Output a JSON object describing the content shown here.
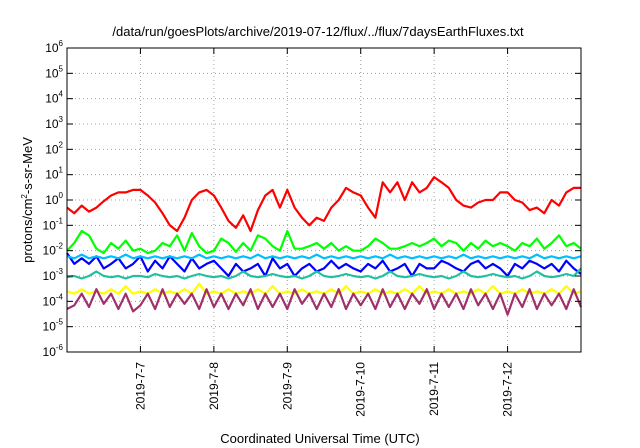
{
  "chart_data": {
    "type": "line",
    "title": "/data/run/goesPlots/archive/2019-07-12/flux/../flux/7daysEarthFluxes.txt",
    "xlabel": "Coordinated Universal Time (UTC)",
    "ylabel_parts": {
      "base": "protons/cm",
      "sup": "2",
      "rest": "-s-sr-MeV"
    },
    "yscale": "log",
    "ylim": [
      1e-06,
      1000000.0
    ],
    "xlim": [
      0,
      7
    ],
    "grid": true,
    "y_ticks": [
      {
        "exp": -6,
        "base": "10",
        "sup": "-6"
      },
      {
        "exp": -5,
        "base": "10",
        "sup": "-5"
      },
      {
        "exp": -4,
        "base": "10",
        "sup": "-4"
      },
      {
        "exp": -3,
        "base": "10",
        "sup": "-3"
      },
      {
        "exp": -2,
        "base": "10",
        "sup": "-2"
      },
      {
        "exp": -1,
        "base": "10",
        "sup": "-1"
      },
      {
        "exp": 0,
        "base": "10",
        "sup": "0"
      },
      {
        "exp": 1,
        "base": "10",
        "sup": "1"
      },
      {
        "exp": 2,
        "base": "10",
        "sup": "2"
      },
      {
        "exp": 3,
        "base": "10",
        "sup": "3"
      },
      {
        "exp": 4,
        "base": "10",
        "sup": "4"
      },
      {
        "exp": 5,
        "base": "10",
        "sup": "5"
      },
      {
        "exp": 6,
        "base": "10",
        "sup": "6"
      }
    ],
    "x_ticks": [
      {
        "x": 1,
        "label": "2019-7-7"
      },
      {
        "x": 2,
        "label": "2019-7-8"
      },
      {
        "x": 3,
        "label": "2019-7-9"
      },
      {
        "x": 4,
        "label": "2019-7-10"
      },
      {
        "x": 5,
        "label": "2019-7-11"
      },
      {
        "x": 6,
        "label": "2019-7-12"
      }
    ],
    "x_days": [
      0,
      0.1,
      0.2,
      0.3,
      0.4,
      0.5,
      0.6,
      0.7,
      0.8,
      0.9,
      1,
      1.1,
      1.2,
      1.3,
      1.4,
      1.5,
      1.6,
      1.7,
      1.8,
      1.9,
      2,
      2.1,
      2.2,
      2.3,
      2.4,
      2.5,
      2.6,
      2.7,
      2.8,
      2.9,
      3,
      3.1,
      3.2,
      3.3,
      3.4,
      3.5,
      3.6,
      3.7,
      3.8,
      3.9,
      4,
      4.1,
      4.2,
      4.3,
      4.4,
      4.5,
      4.6,
      4.7,
      4.8,
      4.9,
      5,
      5.1,
      5.2,
      5.3,
      5.4,
      5.5,
      5.6,
      5.7,
      5.8,
      5.9,
      6,
      6.1,
      6.2,
      6.3,
      6.4,
      6.5,
      6.6,
      6.7,
      6.8,
      6.9,
      7
    ],
    "series": [
      {
        "color": "#ff0000",
        "width": 2.2,
        "values": [
          0.5,
          0.3,
          0.6,
          0.35,
          0.5,
          0.9,
          1.5,
          2,
          2,
          2.5,
          2.5,
          1.5,
          0.8,
          0.3,
          0.1,
          0.06,
          0.2,
          1,
          2,
          2.5,
          1.5,
          0.5,
          0.15,
          0.08,
          0.25,
          0.06,
          0.4,
          1.5,
          2.5,
          0.5,
          2.5,
          0.5,
          0.2,
          0.1,
          0.2,
          0.15,
          0.5,
          1,
          3,
          2,
          1.5,
          0.5,
          0.2,
          5,
          2,
          5,
          1,
          5,
          2,
          3,
          8,
          5,
          3,
          1,
          0.6,
          0.5,
          0.8,
          1,
          1,
          2,
          2,
          1,
          0.8,
          0.4,
          0.5,
          0.3,
          1,
          0.6,
          2,
          3,
          3
        ]
      },
      {
        "color": "#00ff00",
        "width": 2.2,
        "values": [
          0.01,
          0.02,
          0.06,
          0.04,
          0.012,
          0.008,
          0.02,
          0.012,
          0.025,
          0.01,
          0.012,
          0.008,
          0.01,
          0.02,
          0.015,
          0.04,
          0.01,
          0.05,
          0.015,
          0.008,
          0.01,
          0.03,
          0.02,
          0.009,
          0.02,
          0.01,
          0.04,
          0.03,
          0.015,
          0.01,
          0.06,
          0.012,
          0.012,
          0.015,
          0.02,
          0.012,
          0.02,
          0.01,
          0.015,
          0.01,
          0.01,
          0.015,
          0.03,
          0.02,
          0.012,
          0.012,
          0.015,
          0.02,
          0.015,
          0.02,
          0.03,
          0.015,
          0.025,
          0.02,
          0.01,
          0.02,
          0.012,
          0.025,
          0.015,
          0.02,
          0.015,
          0.01,
          0.02,
          0.015,
          0.03,
          0.012,
          0.02,
          0.04,
          0.015,
          0.02,
          0.012
        ]
      },
      {
        "color": "#0000ff",
        "width": 2.2,
        "values": [
          0.008,
          0.003,
          0.005,
          0.003,
          0.006,
          0.002,
          0.003,
          0.005,
          0.002,
          0.003,
          0.006,
          0.0015,
          0.004,
          0.002,
          0.006,
          0.003,
          0.0015,
          0.005,
          0.002,
          0.003,
          0.004,
          0.002,
          0.001,
          0.003,
          0.0015,
          0.002,
          0.003,
          0.001,
          0.005,
          0.002,
          0.003,
          0.001,
          0.002,
          0.003,
          0.0015,
          0.002,
          0.004,
          0.002,
          0.003,
          0.002,
          0.0015,
          0.003,
          0.002,
          0.004,
          0.0015,
          0.002,
          0.003,
          0.001,
          0.003,
          0.002,
          0.002,
          0.004,
          0.003,
          0.002,
          0.0015,
          0.003,
          0.004,
          0.002,
          0.003,
          0.002,
          0.001,
          0.003,
          0.002,
          0.004,
          0.003,
          0.002,
          0.003,
          0.0015,
          0.004,
          0.002,
          0.0012
        ]
      },
      {
        "color": "#00bfff",
        "width": 2.2,
        "values": [
          0.006,
          0.005,
          0.007,
          0.005,
          0.006,
          0.005,
          0.006,
          0.005,
          0.007,
          0.005,
          0.006,
          0.005,
          0.006,
          0.005,
          0.006,
          0.005,
          0.006,
          0.005,
          0.007,
          0.005,
          0.006,
          0.005,
          0.006,
          0.005,
          0.006,
          0.005,
          0.007,
          0.005,
          0.006,
          0.005,
          0.006,
          0.005,
          0.006,
          0.005,
          0.007,
          0.005,
          0.006,
          0.005,
          0.006,
          0.005,
          0.006,
          0.005,
          0.006,
          0.005,
          0.007,
          0.005,
          0.006,
          0.005,
          0.006,
          0.005,
          0.006,
          0.005,
          0.006,
          0.005,
          0.007,
          0.005,
          0.006,
          0.005,
          0.006,
          0.005,
          0.006,
          0.005,
          0.006,
          0.005,
          0.007,
          0.005,
          0.006,
          0.005,
          0.006,
          0.005,
          0.006
        ]
      },
      {
        "color": "#20c0a0",
        "width": 2.2,
        "values": [
          0.0009,
          0.001,
          0.0008,
          0.001,
          0.0015,
          0.001,
          0.0009,
          0.001,
          0.0008,
          0.001,
          0.001,
          0.0009,
          0.0012,
          0.001,
          0.0009,
          0.001,
          0.0008,
          0.001,
          0.0012,
          0.001,
          0.0009,
          0.001,
          0.0008,
          0.001,
          0.0015,
          0.001,
          0.0009,
          0.001,
          0.0012,
          0.001,
          0.0009,
          0.001,
          0.0008,
          0.001,
          0.0015,
          0.001,
          0.0009,
          0.001,
          0.0012,
          0.001,
          0.0009,
          0.001,
          0.0008,
          0.001,
          0.0015,
          0.001,
          0.0009,
          0.001,
          0.0012,
          0.001,
          0.0009,
          0.001,
          0.0008,
          0.001,
          0.0015,
          0.001,
          0.0009,
          0.001,
          0.0012,
          0.001,
          0.0009,
          0.001,
          0.0008,
          0.001,
          0.0015,
          0.001,
          0.0009,
          0.001,
          0.0012,
          0.001,
          0.002
        ]
      },
      {
        "color": "#ffff00",
        "width": 2.2,
        "values": [
          0.00025,
          0.0002,
          0.0003,
          0.0002,
          0.00025,
          0.0002,
          0.0003,
          0.0002,
          0.0004,
          0.0002,
          0.00025,
          0.0002,
          0.0003,
          0.0002,
          0.00025,
          0.0002,
          0.0003,
          0.0002,
          0.0005,
          0.0002,
          0.00025,
          0.0002,
          0.0003,
          0.0002,
          0.00025,
          0.0002,
          0.0003,
          0.0002,
          0.0004,
          0.0002,
          0.00025,
          0.0002,
          0.0003,
          0.0002,
          0.00025,
          0.0002,
          0.0003,
          0.0002,
          0.0004,
          0.0002,
          0.00025,
          0.0002,
          0.0003,
          0.0002,
          0.00025,
          0.0002,
          0.0003,
          0.0002,
          0.0004,
          0.0002,
          0.00025,
          0.0002,
          0.0003,
          0.0002,
          0.00025,
          0.0002,
          0.0003,
          0.0002,
          0.0004,
          0.0002,
          0.00025,
          0.0002,
          0.0003,
          0.0002,
          0.00025,
          0.0002,
          0.0003,
          0.0002,
          0.0004,
          0.0002,
          0.00025
        ]
      },
      {
        "color": "#a0306a",
        "width": 2.2,
        "values": [
          5e-05,
          7e-05,
          0.0002,
          6e-05,
          0.0003,
          8e-05,
          0.0002,
          5e-05,
          0.0002,
          4e-05,
          7e-05,
          0.0002,
          5e-05,
          0.0003,
          6e-05,
          0.0002,
          8e-05,
          0.0002,
          5e-05,
          0.0003,
          6e-05,
          0.0002,
          5e-05,
          0.0002,
          7e-05,
          0.0003,
          5e-05,
          0.0002,
          6e-05,
          0.0002,
          5e-05,
          0.0003,
          8e-05,
          0.0002,
          5e-05,
          0.0002,
          6e-05,
          0.0003,
          5e-05,
          0.0002,
          7e-05,
          0.0002,
          5e-05,
          0.0003,
          6e-05,
          0.0002,
          5e-05,
          0.0002,
          8e-05,
          0.0003,
          5e-05,
          0.0002,
          6e-05,
          0.0002,
          5e-05,
          0.0003,
          7e-05,
          0.0002,
          5e-05,
          0.0002,
          3e-05,
          0.0002,
          6e-05,
          0.0003,
          5e-05,
          0.0002,
          7e-05,
          0.0002,
          5e-05,
          0.0003,
          6e-05
        ]
      }
    ]
  }
}
